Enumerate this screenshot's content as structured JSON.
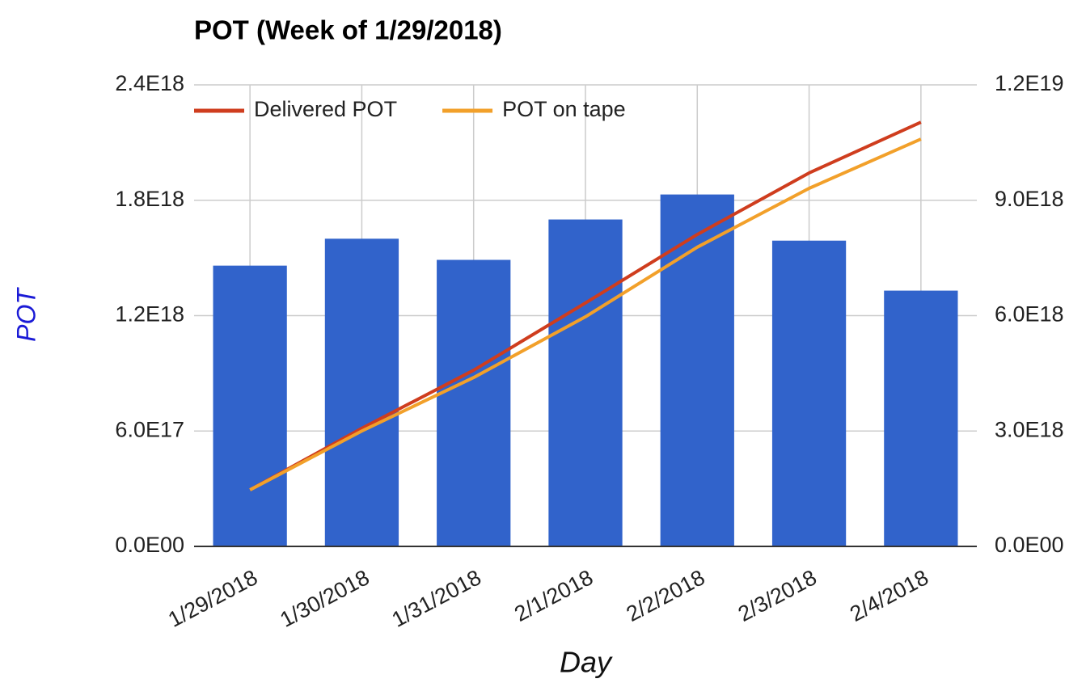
{
  "chart_data": {
    "type": "bar_line",
    "title": "POT (Week of 1/29/2018)",
    "x_label": "Day",
    "y_label": "POT",
    "categories": [
      "1/29/2018",
      "1/30/2018",
      "1/31/2018",
      "2/1/2018",
      "2/2/2018",
      "2/3/2018",
      "2/4/2018"
    ],
    "series": [
      {
        "type": "bar",
        "color": "#3163cb",
        "values": [
          1.46e+18,
          1.6e+18,
          1.49e+18,
          1.7e+18,
          1.83e+18,
          1.59e+18,
          1.33e+18
        ]
      },
      {
        "type": "line",
        "name": "Delivered POT",
        "color": "#cf3d1e",
        "axis": "y2",
        "values": [
          1.47e+18,
          3.07e+18,
          4.58e+18,
          6.33e+18,
          8.11e+18,
          9.71e+18,
          1.103e+19
        ]
      },
      {
        "type": "line",
        "name": "POT on tape",
        "color": "#f2a02a",
        "axis": "y2",
        "values": [
          1.47e+18,
          3e+18,
          4.39e+18,
          5.97e+18,
          7.78e+18,
          9.31e+18,
          1.059e+19
        ]
      }
    ],
    "ylim": [
      0,
      2.4e+18
    ],
    "yticks": [
      {
        "value": 0,
        "label": "0.0E00"
      },
      {
        "value": 6e+17,
        "label": "6.0E17"
      },
      {
        "value": 1.2e+18,
        "label": "1.2E18"
      },
      {
        "value": 1.8e+18,
        "label": "1.8E18"
      },
      {
        "value": 2.4e+18,
        "label": "2.4E18"
      }
    ],
    "y2lim": [
      0,
      1.2e+19
    ],
    "y2ticks": [
      {
        "value": 0,
        "label": "0.0E00"
      },
      {
        "value": 3e+18,
        "label": "3.0E18"
      },
      {
        "value": 6e+18,
        "label": "6.0E18"
      },
      {
        "value": 9e+18,
        "label": "9.0E18"
      },
      {
        "value": 1.2e+19,
        "label": "1.2E19"
      }
    ],
    "grid": true,
    "legend": "top-left"
  }
}
